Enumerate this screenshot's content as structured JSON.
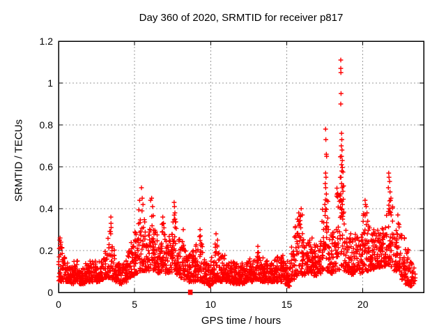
{
  "chart_data": {
    "type": "scatter",
    "title": "Day 360 of 2020, SRMTID for receiver p817",
    "xlabel": "GPS time / hours",
    "ylabel": "SRMTID / TECUs",
    "xlim": [
      0,
      24
    ],
    "ylim": [
      0,
      1.2
    ],
    "xticks": [
      0,
      5,
      10,
      15,
      20
    ],
    "xtick_labels": [
      "0",
      "5",
      "10",
      "15",
      "20"
    ],
    "yticks": [
      0,
      0.2,
      0.4,
      0.6,
      0.8,
      1,
      1.2
    ],
    "ytick_labels": [
      "0",
      "0.2",
      "0.4",
      "0.6",
      "0.8",
      "1",
      "1.2"
    ],
    "grid": true,
    "legend": null,
    "marker": "plus",
    "marker_color": "#ff0000",
    "grid_color": "#9a9a9a",
    "border_color": "#000000",
    "band_segments": [
      [
        0.0,
        0.25,
        0.05,
        0.22,
        30
      ],
      [
        0.25,
        0.5,
        0.05,
        0.17
      ],
      [
        0.5,
        0.75,
        0.05,
        0.15
      ],
      [
        0.75,
        1.0,
        0.04,
        0.13
      ],
      [
        1.0,
        1.25,
        0.05,
        0.15
      ],
      [
        1.25,
        1.5,
        0.04,
        0.14
      ],
      [
        1.5,
        1.75,
        0.04,
        0.12
      ],
      [
        1.75,
        2.0,
        0.05,
        0.14
      ],
      [
        2.0,
        2.25,
        0.05,
        0.15
      ],
      [
        2.25,
        2.5,
        0.06,
        0.16
      ],
      [
        2.5,
        2.75,
        0.05,
        0.15
      ],
      [
        2.75,
        3.0,
        0.06,
        0.17
      ],
      [
        3.0,
        3.25,
        0.07,
        0.2
      ],
      [
        3.25,
        3.5,
        0.07,
        0.3
      ],
      [
        3.5,
        3.75,
        0.06,
        0.22
      ],
      [
        3.75,
        4.0,
        0.05,
        0.15
      ],
      [
        4.0,
        4.25,
        0.04,
        0.14
      ],
      [
        4.25,
        4.5,
        0.05,
        0.16
      ],
      [
        4.5,
        4.75,
        0.07,
        0.2
      ],
      [
        4.75,
        5.0,
        0.08,
        0.24
      ],
      [
        5.0,
        5.25,
        0.09,
        0.3
      ],
      [
        5.25,
        5.5,
        0.1,
        0.4
      ],
      [
        5.5,
        5.75,
        0.1,
        0.36
      ],
      [
        5.75,
        6.0,
        0.1,
        0.33
      ],
      [
        6.0,
        6.25,
        0.1,
        0.4
      ],
      [
        6.25,
        6.5,
        0.1,
        0.3
      ],
      [
        6.5,
        6.75,
        0.09,
        0.27
      ],
      [
        6.75,
        7.0,
        0.1,
        0.33
      ],
      [
        7.0,
        7.25,
        0.09,
        0.26
      ],
      [
        7.25,
        7.5,
        0.09,
        0.28
      ],
      [
        7.5,
        7.75,
        0.1,
        0.38
      ],
      [
        7.75,
        8.0,
        0.08,
        0.26
      ],
      [
        8.0,
        8.25,
        0.07,
        0.28
      ],
      [
        8.25,
        8.5,
        0.06,
        0.21
      ],
      [
        8.5,
        8.75,
        0.05,
        0.18
      ],
      [
        8.75,
        9.0,
        0.05,
        0.2
      ],
      [
        9.0,
        9.25,
        0.05,
        0.23
      ],
      [
        9.25,
        9.5,
        0.05,
        0.27
      ],
      [
        9.5,
        9.75,
        0.04,
        0.16
      ],
      [
        9.75,
        10.0,
        0.03,
        0.13
      ],
      [
        10.0,
        10.25,
        0.04,
        0.17
      ],
      [
        10.25,
        10.5,
        0.05,
        0.25
      ],
      [
        10.5,
        10.75,
        0.05,
        0.19
      ],
      [
        10.75,
        11.0,
        0.06,
        0.18
      ],
      [
        11.0,
        11.25,
        0.05,
        0.16
      ],
      [
        11.25,
        11.5,
        0.04,
        0.15
      ],
      [
        11.5,
        11.75,
        0.04,
        0.14
      ],
      [
        11.75,
        12.0,
        0.04,
        0.13
      ],
      [
        12.0,
        12.25,
        0.04,
        0.14
      ],
      [
        12.25,
        12.5,
        0.05,
        0.15
      ],
      [
        12.5,
        12.75,
        0.05,
        0.17
      ],
      [
        12.75,
        13.0,
        0.06,
        0.19
      ],
      [
        13.0,
        13.25,
        0.06,
        0.21
      ],
      [
        13.25,
        13.5,
        0.05,
        0.18
      ],
      [
        13.5,
        13.75,
        0.05,
        0.16
      ],
      [
        13.75,
        14.0,
        0.04,
        0.15
      ],
      [
        14.0,
        14.25,
        0.05,
        0.16
      ],
      [
        14.25,
        14.5,
        0.05,
        0.17
      ],
      [
        14.5,
        14.75,
        0.05,
        0.18
      ],
      [
        14.75,
        15.0,
        0.04,
        0.16
      ],
      [
        15.0,
        15.25,
        0.03,
        0.15
      ],
      [
        15.25,
        15.5,
        0.06,
        0.22
      ],
      [
        15.5,
        15.75,
        0.08,
        0.33
      ],
      [
        15.75,
        16.0,
        0.09,
        0.38
      ],
      [
        16.0,
        16.25,
        0.08,
        0.3
      ],
      [
        16.25,
        16.5,
        0.08,
        0.25
      ],
      [
        16.5,
        16.75,
        0.09,
        0.26
      ],
      [
        16.75,
        17.0,
        0.08,
        0.24
      ],
      [
        17.0,
        17.25,
        0.09,
        0.28
      ],
      [
        17.25,
        17.5,
        0.1,
        0.4
      ],
      [
        17.5,
        17.75,
        0.1,
        0.5
      ],
      [
        17.75,
        18.0,
        0.09,
        0.28
      ],
      [
        18.0,
        18.25,
        0.1,
        0.3
      ],
      [
        18.25,
        18.5,
        0.1,
        0.5
      ],
      [
        18.5,
        18.75,
        0.12,
        0.65,
        32
      ],
      [
        18.75,
        19.0,
        0.1,
        0.33
      ],
      [
        19.0,
        19.25,
        0.09,
        0.28
      ],
      [
        19.25,
        19.5,
        0.08,
        0.26
      ],
      [
        19.5,
        19.75,
        0.1,
        0.28
      ],
      [
        19.75,
        20.0,
        0.09,
        0.3
      ],
      [
        20.0,
        20.25,
        0.1,
        0.38
      ],
      [
        20.25,
        20.5,
        0.1,
        0.33
      ],
      [
        20.5,
        20.75,
        0.11,
        0.3,
        30
      ],
      [
        20.75,
        21.0,
        0.12,
        0.32,
        30
      ],
      [
        21.0,
        21.25,
        0.12,
        0.3,
        30
      ],
      [
        21.25,
        21.5,
        0.12,
        0.34
      ],
      [
        21.5,
        21.75,
        0.13,
        0.42
      ],
      [
        21.75,
        22.0,
        0.12,
        0.45
      ],
      [
        22.0,
        22.25,
        0.1,
        0.32
      ],
      [
        22.25,
        22.5,
        0.1,
        0.35
      ],
      [
        22.5,
        22.75,
        0.06,
        0.28
      ],
      [
        22.75,
        23.0,
        0.04,
        0.22
      ],
      [
        23.0,
        23.25,
        0.03,
        0.15
      ],
      [
        23.25,
        23.45,
        0.04,
        0.12,
        12
      ]
    ],
    "outlier_points": [
      [
        0.08,
        0.25
      ],
      [
        0.1,
        0.26
      ],
      [
        0.12,
        0.23
      ],
      [
        0.15,
        0.24
      ],
      [
        0.05,
        0.21
      ],
      [
        3.44,
        0.36
      ],
      [
        3.45,
        0.33
      ],
      [
        3.46,
        0.31
      ],
      [
        3.43,
        0.28
      ],
      [
        5.45,
        0.5
      ],
      [
        5.33,
        0.44
      ],
      [
        5.5,
        0.45
      ],
      [
        5.55,
        0.42
      ],
      [
        6.05,
        0.44
      ],
      [
        6.12,
        0.45
      ],
      [
        6.18,
        0.41
      ],
      [
        6.85,
        0.36
      ],
      [
        6.9,
        0.33
      ],
      [
        7.6,
        0.43
      ],
      [
        7.62,
        0.41
      ],
      [
        7.65,
        0.38
      ],
      [
        8.2,
        0.3
      ],
      [
        9.3,
        0.3
      ],
      [
        9.33,
        0.27
      ],
      [
        10.35,
        0.28
      ],
      [
        13.1,
        0.22
      ],
      [
        15.7,
        0.35
      ],
      [
        15.95,
        0.4
      ],
      [
        16.02,
        0.37
      ],
      [
        17.55,
        0.78
      ],
      [
        17.57,
        0.73
      ],
      [
        17.6,
        0.66
      ],
      [
        17.62,
        0.65
      ],
      [
        17.55,
        0.57
      ],
      [
        17.58,
        0.55
      ],
      [
        17.53,
        0.52
      ],
      [
        17.56,
        0.5
      ],
      [
        17.6,
        0.47
      ],
      [
        17.63,
        0.44
      ],
      [
        17.5,
        0.42
      ],
      [
        18.55,
        1.11
      ],
      [
        18.55,
        1.07
      ],
      [
        18.56,
        1.05
      ],
      [
        18.57,
        0.95
      ],
      [
        18.55,
        0.9
      ],
      [
        18.6,
        0.76
      ],
      [
        18.62,
        0.73
      ],
      [
        18.58,
        0.7
      ],
      [
        18.63,
        0.68
      ],
      [
        18.6,
        0.65
      ],
      [
        18.65,
        0.63
      ],
      [
        18.6,
        0.61
      ],
      [
        18.62,
        0.58
      ],
      [
        18.57,
        0.55
      ],
      [
        18.6,
        0.52
      ],
      [
        18.64,
        0.5
      ],
      [
        18.55,
        0.47
      ],
      [
        18.6,
        0.44
      ],
      [
        18.66,
        0.42
      ],
      [
        18.58,
        0.4
      ],
      [
        18.62,
        0.38
      ],
      [
        18.68,
        0.35
      ],
      [
        20.15,
        0.44
      ],
      [
        20.18,
        0.42
      ],
      [
        20.22,
        0.41
      ],
      [
        20.27,
        0.38
      ],
      [
        20.32,
        0.34
      ],
      [
        21.7,
        0.57
      ],
      [
        21.72,
        0.55
      ],
      [
        21.76,
        0.53
      ],
      [
        21.68,
        0.5
      ],
      [
        21.79,
        0.48
      ],
      [
        21.82,
        0.44
      ],
      [
        21.74,
        0.4
      ],
      [
        21.86,
        0.37
      ],
      [
        22.3,
        0.37
      ],
      [
        22.33,
        0.33
      ]
    ],
    "zero_cluster": {
      "x": 8.66,
      "y": 0,
      "marker": "filled-square"
    }
  }
}
